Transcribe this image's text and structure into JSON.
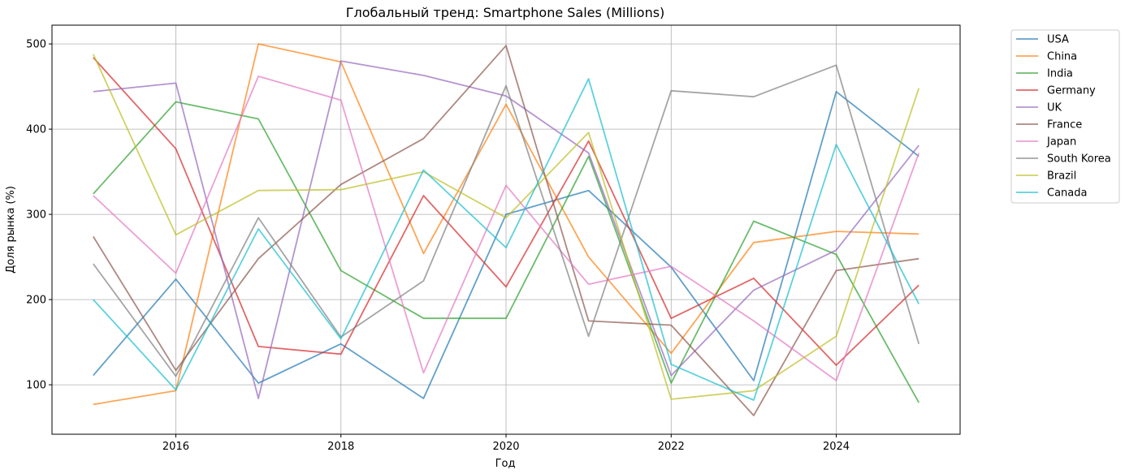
{
  "chart_data": {
    "type": "line",
    "title": "Глобальный тренд: Smartphone Sales (Millions)",
    "xlabel": "Год",
    "ylabel": "Доля рынка (%)",
    "x": [
      2015,
      2016,
      2017,
      2018,
      2019,
      2020,
      2021,
      2022,
      2023,
      2024,
      2025
    ],
    "x_ticks": [
      "2016",
      "2018",
      "2020",
      "2022",
      "2024"
    ],
    "y_ticks": [
      "100",
      "200",
      "300",
      "400",
      "500"
    ],
    "xlim": [
      2014.5,
      2025.5
    ],
    "ylim": [
      42,
      522
    ],
    "grid": true,
    "legend_position": "outside right, top",
    "series": [
      {
        "name": "USA",
        "color": "#1f77b4",
        "values": [
          111,
          224,
          102,
          148,
          84,
          300,
          328,
          238,
          105,
          444,
          368
        ]
      },
      {
        "name": "China",
        "color": "#ff7f0e",
        "values": [
          77,
          93,
          500,
          479,
          254,
          429,
          250,
          137,
          267,
          280,
          277
        ]
      },
      {
        "name": "India",
        "color": "#2ca02c",
        "values": [
          324,
          432,
          412,
          234,
          178,
          178,
          368,
          102,
          292,
          253,
          79
        ]
      },
      {
        "name": "Germany",
        "color": "#d62728",
        "values": [
          484,
          377,
          145,
          136,
          322,
          215,
          386,
          178,
          225,
          123,
          217
        ]
      },
      {
        "name": "UK",
        "color": "#9467bd",
        "values": [
          444,
          454,
          84,
          480,
          463,
          439,
          372,
          111,
          211,
          258,
          381
        ]
      },
      {
        "name": "France",
        "color": "#8c564b",
        "values": [
          274,
          117,
          248,
          335,
          389,
          498,
          175,
          170,
          64,
          234,
          248
        ]
      },
      {
        "name": "Japan",
        "color": "#e377c2",
        "values": [
          322,
          231,
          462,
          434,
          114,
          334,
          218,
          239,
          175,
          105,
          372
        ]
      },
      {
        "name": "South Korea",
        "color": "#7f7f7f",
        "values": [
          242,
          110,
          296,
          156,
          222,
          451,
          157,
          445,
          438,
          475,
          148
        ]
      },
      {
        "name": "Brazil",
        "color": "#bcbd22",
        "values": [
          488,
          276,
          328,
          329,
          350,
          296,
          396,
          83,
          93,
          157,
          448
        ]
      },
      {
        "name": "Canada",
        "color": "#17becf",
        "values": [
          200,
          94,
          283,
          154,
          352,
          261,
          459,
          124,
          82,
          382,
          195
        ]
      }
    ]
  }
}
